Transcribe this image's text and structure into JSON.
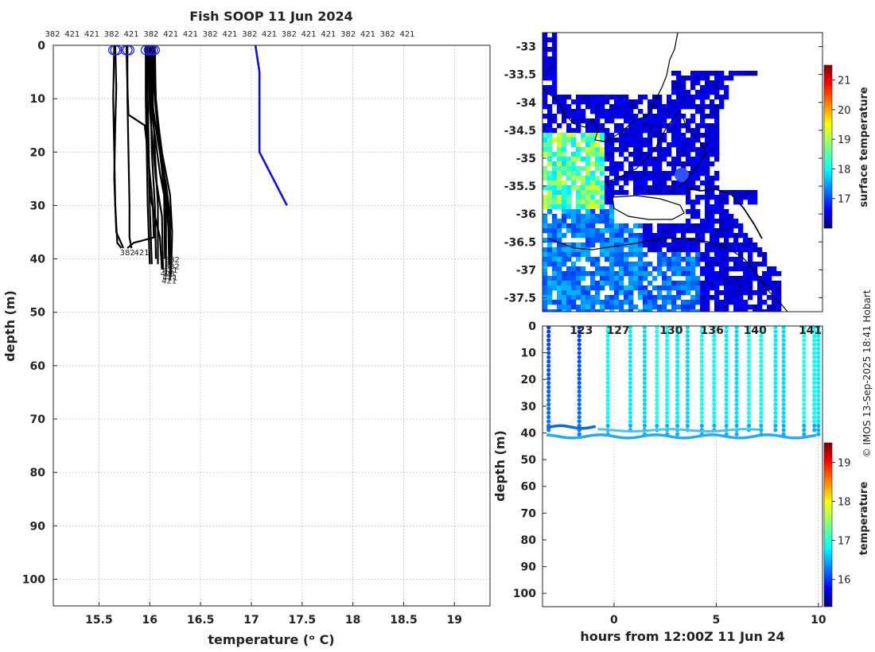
{
  "chart_data": [
    {
      "type": "line",
      "title": "Fish SOOP 11 Jun 2024",
      "xlabel": "temperature (ᵒ C)",
      "ylabel": "depth (m)",
      "xlim": [
        15.05,
        19.35
      ],
      "ylim": [
        105,
        0
      ],
      "xticks": [
        15.5,
        16,
        16.5,
        17,
        17.5,
        18,
        18.5,
        19
      ],
      "xtick_labels": [
        "15.5",
        "16",
        "16.5",
        "17",
        "17.5",
        "18",
        "18.5",
        "19"
      ],
      "yticks": [
        0,
        10,
        20,
        30,
        40,
        50,
        60,
        70,
        80,
        90,
        100
      ],
      "ytick_labels": [
        "0",
        "10",
        "20",
        "30",
        "40",
        "50",
        "60",
        "70",
        "80",
        "90",
        "100"
      ],
      "grid": true,
      "top_labels": [
        "382",
        "421",
        "421",
        "382",
        "421",
        "382",
        "421",
        "421",
        "382",
        "421",
        "382",
        "421",
        "382",
        "421",
        "421",
        "382",
        "421",
        "382",
        "421"
      ],
      "series": [
        {
          "name": "profile-1",
          "color": "#000000",
          "points": [
            [
              15.65,
              0
            ],
            [
              15.64,
              10
            ],
            [
              15.65,
              20
            ],
            [
              15.66,
              30
            ],
            [
              15.68,
              37
            ],
            [
              15.72,
              38
            ]
          ]
        },
        {
          "name": "profile-2",
          "color": "#000000",
          "points": [
            [
              15.66,
              0
            ],
            [
              15.67,
              8
            ],
            [
              15.66,
              15
            ],
            [
              15.65,
              25
            ],
            [
              15.67,
              35
            ],
            [
              15.74,
              38
            ]
          ]
        },
        {
          "name": "profile-3",
          "color": "#000000",
          "points": [
            [
              15.78,
              0
            ],
            [
              15.78,
              10
            ],
            [
              15.79,
              20
            ],
            [
              15.8,
              30
            ],
            [
              15.8,
              36
            ],
            [
              15.82,
              38
            ]
          ]
        },
        {
          "name": "profile-4",
          "color": "#000000",
          "points": [
            [
              15.77,
              0
            ],
            [
              15.78,
              8
            ],
            [
              15.79,
              13
            ],
            [
              15.95,
              15
            ],
            [
              15.98,
              20
            ],
            [
              16.03,
              30
            ],
            [
              16.04,
              36
            ],
            [
              15.84,
              37
            ],
            [
              15.78,
              38
            ]
          ]
        },
        {
          "name": "profile-5",
          "color": "#000000",
          "points": [
            [
              15.96,
              0
            ],
            [
              15.96,
              10
            ],
            [
              15.97,
              20
            ],
            [
              15.98,
              30
            ],
            [
              16.0,
              41
            ]
          ]
        },
        {
          "name": "profile-6",
          "color": "#000000",
          "points": [
            [
              15.98,
              0
            ],
            [
              15.98,
              10
            ],
            [
              15.99,
              20
            ],
            [
              16.0,
              30
            ],
            [
              16.02,
              41
            ]
          ]
        },
        {
          "name": "profile-7",
          "color": "#000000",
          "points": [
            [
              16.0,
              0
            ],
            [
              16.01,
              10
            ],
            [
              16.02,
              20
            ],
            [
              16.05,
              30
            ],
            [
              16.06,
              40
            ]
          ]
        },
        {
          "name": "profile-8",
          "color": "#000000",
          "points": [
            [
              16.02,
              0
            ],
            [
              16.03,
              10
            ],
            [
              16.05,
              20
            ],
            [
              16.08,
              30
            ],
            [
              16.08,
              41
            ]
          ]
        },
        {
          "name": "profile-9",
          "color": "#000000",
          "points": [
            [
              16.04,
              0
            ],
            [
              16.05,
              10
            ],
            [
              16.1,
              20
            ],
            [
              16.14,
              27
            ],
            [
              16.15,
              40
            ]
          ]
        },
        {
          "name": "profile-10",
          "color": "#000000",
          "points": [
            [
              16.04,
              0
            ],
            [
              16.06,
              10
            ],
            [
              16.12,
              22
            ],
            [
              16.18,
              30
            ],
            [
              16.19,
              41
            ]
          ]
        },
        {
          "name": "profile-11",
          "color": "#000000",
          "points": [
            [
              16.0,
              0
            ],
            [
              16.02,
              10
            ],
            [
              16.08,
              18
            ],
            [
              16.16,
              26
            ],
            [
              16.2,
              32
            ],
            [
              16.2,
              42
            ]
          ]
        },
        {
          "name": "profile-12",
          "color": "#000000",
          "points": [
            [
              16.03,
              0
            ],
            [
              16.04,
              8
            ],
            [
              16.12,
              20
            ],
            [
              16.2,
              28
            ],
            [
              16.22,
              35
            ],
            [
              16.21,
              43
            ]
          ]
        },
        {
          "name": "profile-13",
          "color": "#000000",
          "points": [
            [
              15.99,
              0
            ],
            [
              16.0,
              12
            ],
            [
              16.06,
              25
            ],
            [
              16.12,
              32
            ],
            [
              16.13,
              42
            ]
          ]
        },
        {
          "name": "profile-14",
          "color": "#000000",
          "points": [
            [
              16.01,
              0
            ],
            [
              16.03,
              14
            ],
            [
              16.1,
              24
            ],
            [
              16.16,
              30
            ],
            [
              16.16,
              43
            ]
          ]
        },
        {
          "name": "profile-15",
          "color": "#000000",
          "points": [
            [
              15.97,
              0
            ],
            [
              15.98,
              15
            ],
            [
              16.0,
              28
            ],
            [
              16.1,
              36
            ],
            [
              16.12,
              42
            ]
          ]
        },
        {
          "name": "profile-16",
          "color": "#000000",
          "points": [
            [
              16.05,
              0
            ],
            [
              16.06,
              12
            ],
            [
              16.14,
              24
            ],
            [
              16.2,
              38
            ],
            [
              16.2,
              44
            ]
          ]
        },
        {
          "name": "surface-profile",
          "color": "#1010dd",
          "points": [
            [
              17.04,
              0
            ],
            [
              17.08,
              5
            ],
            [
              17.08,
              10
            ],
            [
              17.08,
              20
            ],
            [
              17.35,
              30
            ]
          ]
        }
      ],
      "surface_markers": [
        15.65,
        15.67,
        15.77,
        15.79,
        15.97,
        16.0,
        16.02,
        16.04
      ],
      "bottom_labels": [
        {
          "text": "382",
          "t": 15.78,
          "d": 38.7
        },
        {
          "text": "421",
          "t": 15.92,
          "d": 38.7
        },
        {
          "text": "382",
          "t": 16.22,
          "d": 40.1
        },
        {
          "text": "382",
          "t": 16.22,
          "d": 41.3
        },
        {
          "text": "421",
          "t": 16.2,
          "d": 42.0
        },
        {
          "text": "421",
          "t": 16.18,
          "d": 42.7
        },
        {
          "text": "421",
          "t": 16.2,
          "d": 43.4
        },
        {
          "text": "421",
          "t": 16.19,
          "d": 44.0
        }
      ]
    },
    {
      "type": "heatmap",
      "name": "surface temperature map",
      "xlim": [
        112,
        150
      ],
      "ylim": [
        -37.75,
        -32.75
      ],
      "yticks": [
        -33,
        -33.5,
        -34,
        -34.5,
        -35,
        -35.5,
        -36,
        -36.5,
        -37,
        -37.5
      ],
      "ytick_labels": [
        "-33",
        "-33.5",
        "-34",
        "-34.5",
        "-35",
        "-35.5",
        "-36",
        "-36.5",
        "-37",
        "-37.5"
      ],
      "colorbar": {
        "label": "surface temperature",
        "range": [
          16,
          21.5
        ],
        "ticks": [
          17,
          18,
          19,
          20,
          21
        ],
        "tick_labels": [
          "17",
          "18",
          "19",
          "20",
          "21"
        ]
      }
    },
    {
      "type": "scatter",
      "name": "depth-time section",
      "xlabel": "hours from 12:00Z 11 Jun 24",
      "ylabel": "depth (m)",
      "xlim": [
        -3.5,
        10.2
      ],
      "ylim": [
        105,
        0
      ],
      "xticks": [
        0,
        5,
        10
      ],
      "xtick_labels": [
        "0",
        "5",
        "10"
      ],
      "yticks": [
        0,
        10,
        20,
        30,
        40,
        50,
        60,
        70,
        80,
        90,
        100
      ],
      "ytick_labels": [
        "0",
        "10",
        "20",
        "30",
        "40",
        "50",
        "60",
        "70",
        "80",
        "90",
        "100"
      ],
      "top_tick_labels": [
        "123",
        "127",
        "130",
        "136",
        "140",
        "141"
      ],
      "casts": [
        -3.2,
        -1.7,
        -0.3,
        0.8,
        1.5,
        2.1,
        2.6,
        3.1,
        3.6,
        4.3,
        4.9,
        5.5,
        6.0,
        6.6,
        7.2,
        7.9,
        8.3,
        9.3,
        9.8,
        10.0
      ],
      "colorbar": {
        "label": "temperature",
        "range": [
          15.3,
          19.5
        ],
        "ticks": [
          16,
          17,
          18,
          19
        ],
        "tick_labels": [
          "16",
          "17",
          "18",
          "19"
        ]
      }
    }
  ],
  "credit": "© IMOS 13-Sep-2025 18:41 Hobart"
}
